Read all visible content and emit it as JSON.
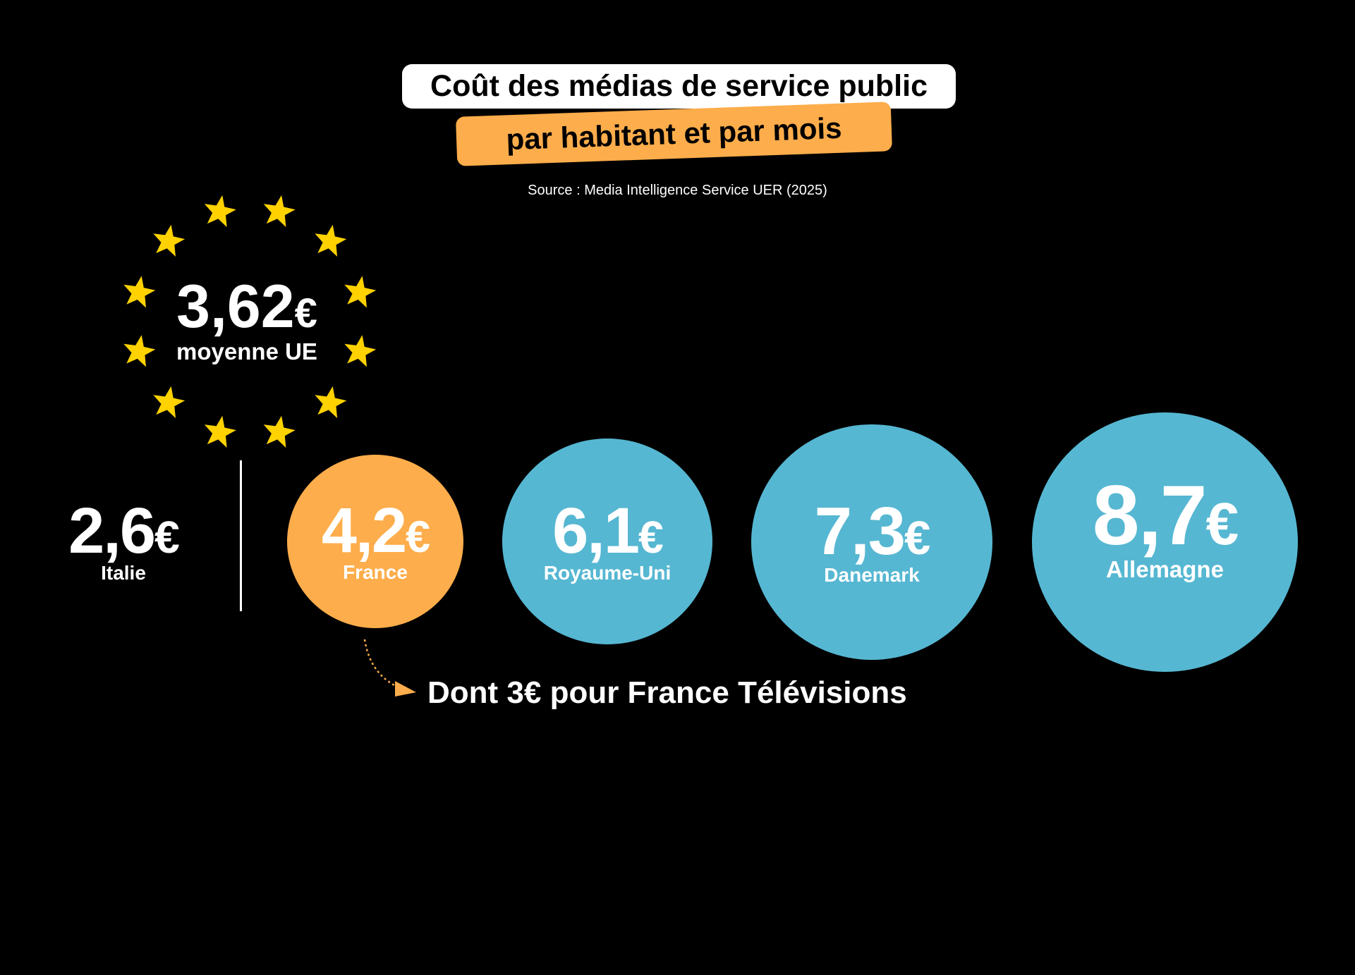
{
  "title": "Coût des médias de service public",
  "subtitle": "par habitant et par mois",
  "source": "Source : Media Intelligence Service UER (2025)",
  "eu_average": {
    "value": "3,62",
    "currency": "€",
    "label": "moyenne UE"
  },
  "countries": [
    {
      "value": "2,6",
      "currency": "€",
      "label": "Italie"
    },
    {
      "value": "4,2",
      "currency": "€",
      "label": "France"
    },
    {
      "value": "6,1",
      "currency": "€",
      "label": "Royaume-Uni"
    },
    {
      "value": "7,3",
      "currency": "€",
      "label": "Danemark"
    },
    {
      "value": "8,7",
      "currency": "€",
      "label": "Allemagne"
    }
  ],
  "note": "Dont 3€ pour France Télévisions",
  "colors": {
    "orange": "#FDAD4B",
    "blue": "#56B7D2",
    "star": "#FFD200"
  }
}
